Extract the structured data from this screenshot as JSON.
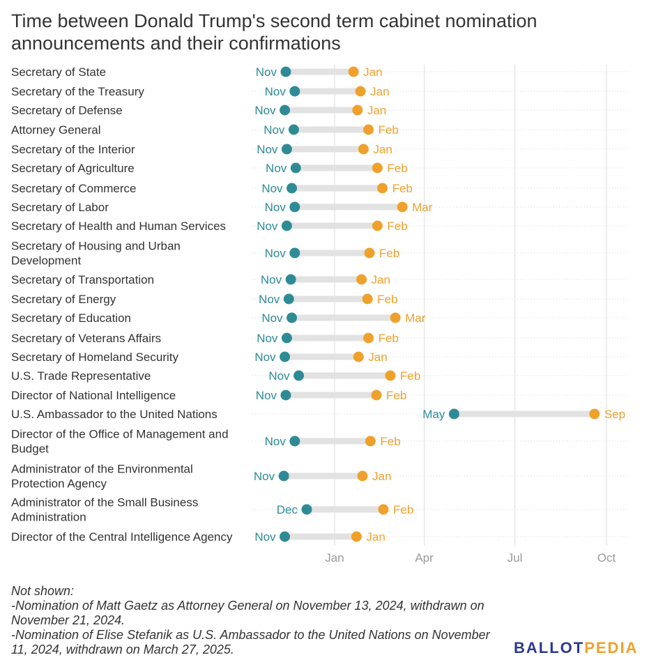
{
  "title": "Time between Donald Trump's second term cabinet nomination announcements and their confirmations",
  "colors": {
    "nomination": "#2e8b96",
    "confirmation": "#f0a12b",
    "bar": "#e2e2e2",
    "grid": "#dddddd",
    "axis_text": "#999999"
  },
  "chart_data": {
    "type": "dumbbell",
    "x_axis": {
      "type": "time",
      "range": [
        "2024-10-20",
        "2025-10-18"
      ],
      "ticks": [
        "2025-01-01",
        "2025-04-01",
        "2025-07-01",
        "2025-10-01"
      ],
      "tick_labels": [
        "Jan",
        "Apr",
        "Jul",
        "Oct"
      ]
    },
    "grid": true,
    "rows": [
      {
        "position": "Secretary of State",
        "start": "2024-11-13",
        "start_label": "Nov",
        "end": "2025-01-20",
        "end_label": "Jan"
      },
      {
        "position": "Secretary of the Treasury",
        "start": "2024-11-22",
        "start_label": "Nov",
        "end": "2025-01-27",
        "end_label": "Jan"
      },
      {
        "position": "Secretary of Defense",
        "start": "2024-11-12",
        "start_label": "Nov",
        "end": "2025-01-24",
        "end_label": "Jan"
      },
      {
        "position": "Attorney General",
        "start": "2024-11-21",
        "start_label": "Nov",
        "end": "2025-02-04",
        "end_label": "Feb"
      },
      {
        "position": "Secretary of the Interior",
        "start": "2024-11-14",
        "start_label": "Nov",
        "end": "2025-01-30",
        "end_label": "Jan"
      },
      {
        "position": "Secretary of Agriculture",
        "start": "2024-11-23",
        "start_label": "Nov",
        "end": "2025-02-13",
        "end_label": "Feb"
      },
      {
        "position": "Secretary of Commerce",
        "start": "2024-11-19",
        "start_label": "Nov",
        "end": "2025-02-18",
        "end_label": "Feb"
      },
      {
        "position": "Secretary of Labor",
        "start": "2024-11-22",
        "start_label": "Nov",
        "end": "2025-03-10",
        "end_label": "Mar"
      },
      {
        "position": "Secretary of Health and Human Services",
        "start": "2024-11-14",
        "start_label": "Nov",
        "end": "2025-02-13",
        "end_label": "Feb"
      },
      {
        "position": "Secretary of Housing and Urban Development",
        "start": "2024-11-22",
        "start_label": "Nov",
        "end": "2025-02-05",
        "end_label": "Feb"
      },
      {
        "position": "Secretary of Transportation",
        "start": "2024-11-18",
        "start_label": "Nov",
        "end": "2025-01-28",
        "end_label": "Jan"
      },
      {
        "position": "Secretary of Energy",
        "start": "2024-11-16",
        "start_label": "Nov",
        "end": "2025-02-03",
        "end_label": "Feb"
      },
      {
        "position": "Secretary of Education",
        "start": "2024-11-19",
        "start_label": "Nov",
        "end": "2025-03-03",
        "end_label": "Mar"
      },
      {
        "position": "Secretary of Veterans Affairs",
        "start": "2024-11-14",
        "start_label": "Nov",
        "end": "2025-02-04",
        "end_label": "Feb"
      },
      {
        "position": "Secretary of Homeland Security",
        "start": "2024-11-12",
        "start_label": "Nov",
        "end": "2025-01-25",
        "end_label": "Jan"
      },
      {
        "position": "U.S. Trade Representative",
        "start": "2024-11-26",
        "start_label": "Nov",
        "end": "2025-02-26",
        "end_label": "Feb"
      },
      {
        "position": "Director of National Intelligence",
        "start": "2024-11-13",
        "start_label": "Nov",
        "end": "2025-02-12",
        "end_label": "Feb"
      },
      {
        "position": "U.S. Ambassador to the United Nations",
        "start": "2025-05-01",
        "start_label": "May",
        "end": "2025-09-19",
        "end_label": "Sep"
      },
      {
        "position": "Director of the Office of Management and Budget",
        "start": "2024-11-22",
        "start_label": "Nov",
        "end": "2025-02-06",
        "end_label": "Feb"
      },
      {
        "position": "Administrator of the Environmental Protection Agency",
        "start": "2024-11-11",
        "start_label": "Nov",
        "end": "2025-01-29",
        "end_label": "Jan"
      },
      {
        "position": "Administrator of the Small Business Administration",
        "start": "2024-12-04",
        "start_label": "Dec",
        "end": "2025-02-19",
        "end_label": "Feb"
      },
      {
        "position": "Director of the Central Intelligence Agency",
        "start": "2024-11-12",
        "start_label": "Nov",
        "end": "2025-01-23",
        "end_label": "Jan"
      }
    ]
  },
  "notes": [
    "Not shown:",
    "-Nomination of Matt Gaetz as Attorney General on November 13, 2024, withdrawn on November 21, 2024.",
    "-Nomination of Elise Stefanik as U.S. Ambassador to the United Nations on November 11, 2024, withdrawn on March 27, 2025."
  ],
  "logo": {
    "part1": "BALLOT",
    "part2": "PEDIA"
  }
}
